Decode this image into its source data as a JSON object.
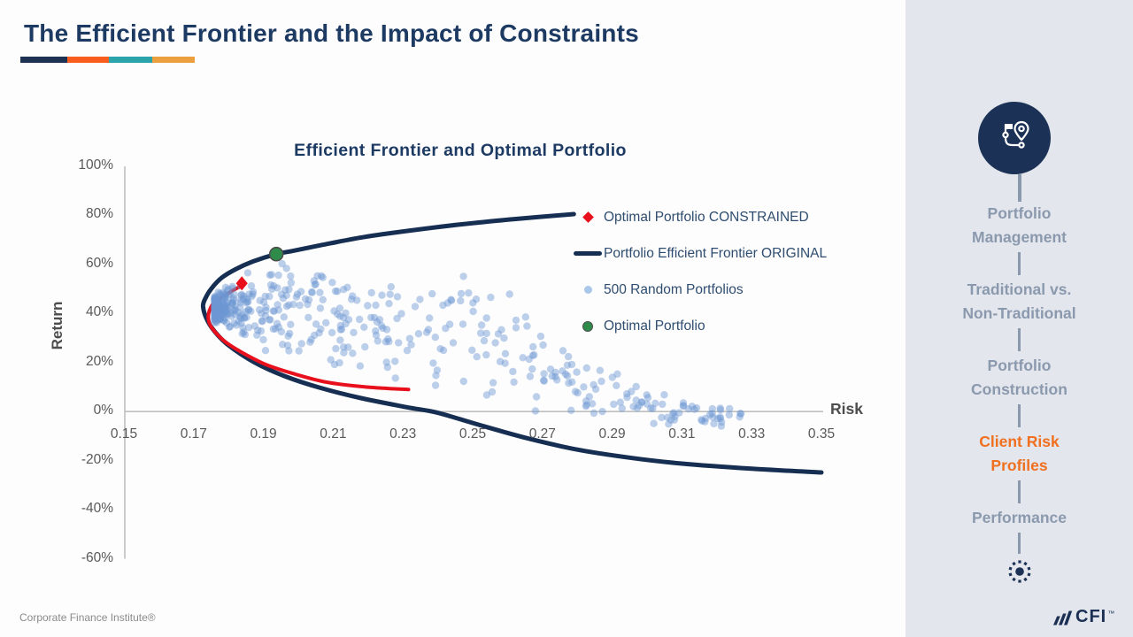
{
  "slide": {
    "title": "The Efficient Frontier and the Impact of Constraints",
    "underline_colors": [
      "#1e3354",
      "#f85c1f",
      "#2aa3ab",
      "#eb9f3e"
    ],
    "footer_text": "Corporate Finance Institute®",
    "logo": {
      "text": "CFI",
      "tm": "™",
      "color": "#1b2f54"
    }
  },
  "sidebar": {
    "bg": "#e3e6ec",
    "inactive_color": "#8b99ae",
    "active_color": "#f1701f",
    "icon_bg": "#1b3156",
    "icon": "route-map-icon",
    "bottom_icon": "dotted-sun-icon",
    "items": [
      {
        "label": "Portfolio Management",
        "lines": [
          "Portfolio",
          "Management"
        ],
        "active": false
      },
      {
        "label": "Traditional vs. Non-Traditional",
        "lines": [
          "Traditional vs.",
          "Non-Traditional"
        ],
        "active": false
      },
      {
        "label": "Portfolio Construction",
        "lines": [
          "Portfolio",
          "Construction"
        ],
        "active": false
      },
      {
        "label": "Client Risk Profiles",
        "lines": [
          "Client Risk",
          "Profiles"
        ],
        "active": true
      },
      {
        "label": "Performance",
        "lines": [
          "Performance"
        ],
        "active": false
      }
    ]
  },
  "chart_data": {
    "type": "scatter",
    "title": "Efficient Frontier and Optimal Portfolio",
    "xlabel": "Risk",
    "ylabel": "Return",
    "xlim": [
      0.15,
      0.35
    ],
    "ylim": [
      -60,
      100
    ],
    "x_ticks": [
      0.15,
      0.17,
      0.19,
      0.21,
      0.23,
      0.25,
      0.27,
      0.29,
      0.31,
      0.33,
      0.35
    ],
    "y_ticks": [
      100,
      80,
      60,
      40,
      20,
      0,
      -20,
      -40,
      -60
    ],
    "y_tick_suffix": "%",
    "grid": false,
    "axis_color": "#bfbfbf",
    "legend_position": "inside-right",
    "series": [
      {
        "name": "Portfolio Efficient Frontier ORIGINAL",
        "type": "line",
        "color": "#152e52",
        "stroke_width": 5,
        "points": [
          [
            0.279,
            80.5
          ],
          [
            0.262,
            78.5
          ],
          [
            0.246,
            76.2
          ],
          [
            0.232,
            73.8
          ],
          [
            0.219,
            71.2
          ],
          [
            0.207,
            68.0
          ],
          [
            0.198,
            65.4
          ],
          [
            0.1937,
            64.2
          ],
          [
            0.187,
            61.2
          ],
          [
            0.182,
            58.0
          ],
          [
            0.178,
            54.5
          ],
          [
            0.175,
            50.0
          ],
          [
            0.1733,
            46.0
          ],
          [
            0.1727,
            43.0
          ],
          [
            0.1735,
            38.5
          ],
          [
            0.1758,
            33.0
          ],
          [
            0.18,
            27.0
          ],
          [
            0.1875,
            20.0
          ],
          [
            0.196,
            14.5
          ],
          [
            0.206,
            9.8
          ],
          [
            0.218,
            5.5
          ],
          [
            0.231,
            1.8
          ],
          [
            0.24,
            -0.5
          ],
          [
            0.252,
            -5.5
          ],
          [
            0.266,
            -11.0
          ],
          [
            0.28,
            -15.5
          ],
          [
            0.295,
            -18.8
          ],
          [
            0.31,
            -21.2
          ],
          [
            0.33,
            -23.3
          ],
          [
            0.35,
            -24.8
          ]
        ]
      },
      {
        "name": "Optimal Portfolio CONSTRAINED",
        "type": "line",
        "color": "#e8101c",
        "stroke_width": 4,
        "marker": "diamond",
        "marker_point": [
          0.1838,
          52.3
        ],
        "points": [
          [
            0.1833,
            51.0
          ],
          [
            0.179,
            47.5
          ],
          [
            0.1756,
            44.0
          ],
          [
            0.1743,
            40.0
          ],
          [
            0.1744,
            36.5
          ],
          [
            0.1758,
            33.0
          ],
          [
            0.179,
            28.5
          ],
          [
            0.184,
            24.0
          ],
          [
            0.191,
            19.0
          ],
          [
            0.199,
            15.3
          ],
          [
            0.208,
            12.0
          ],
          [
            0.218,
            10.2
          ],
          [
            0.227,
            9.3
          ],
          [
            0.2316,
            9.0
          ]
        ]
      },
      {
        "name": "500 Random Portfolios",
        "type": "scatter",
        "color": "#6d96d3",
        "opacity": 0.45,
        "radius": 4.2,
        "count": 500,
        "seed": 13,
        "generator": {
          "x_min": 0.176,
          "x_span": 0.152,
          "x_skew": 2.6,
          "band_x": [
            0.176,
            0.185,
            0.195,
            0.205,
            0.215,
            0.225,
            0.235,
            0.245,
            0.255,
            0.265,
            0.275,
            0.285,
            0.295,
            0.305,
            0.315,
            0.328
          ],
          "band_top": [
            56,
            63,
            64.5,
            62,
            60,
            58,
            58,
            64,
            54,
            45,
            32,
            22,
            14,
            9,
            5,
            1
          ],
          "band_bottom": [
            36,
            26,
            21,
            16,
            13,
            10,
            7,
            4,
            2,
            -2,
            -4,
            -5,
            -6,
            -7,
            -7,
            -7
          ]
        }
      },
      {
        "name": "Optimal Portfolio",
        "type": "point",
        "marker": "circle",
        "color": "#2e8b4a",
        "stroke": "#4d4d4d",
        "points": [
          [
            0.1937,
            64.2
          ]
        ]
      }
    ],
    "legend": [
      {
        "label": "Optimal Portfolio CONSTRAINED",
        "marker": "diamond",
        "color": "#e8101c"
      },
      {
        "label": "Portfolio Efficient Frontier ORIGINAL",
        "marker": "line",
        "color": "#152e52"
      },
      {
        "label": "500 Random Portfolios",
        "marker": "dot",
        "color": "#a9c7ea"
      },
      {
        "label": "Optimal Portfolio",
        "marker": "dot-ring",
        "color": "#2e8b4a"
      }
    ]
  }
}
